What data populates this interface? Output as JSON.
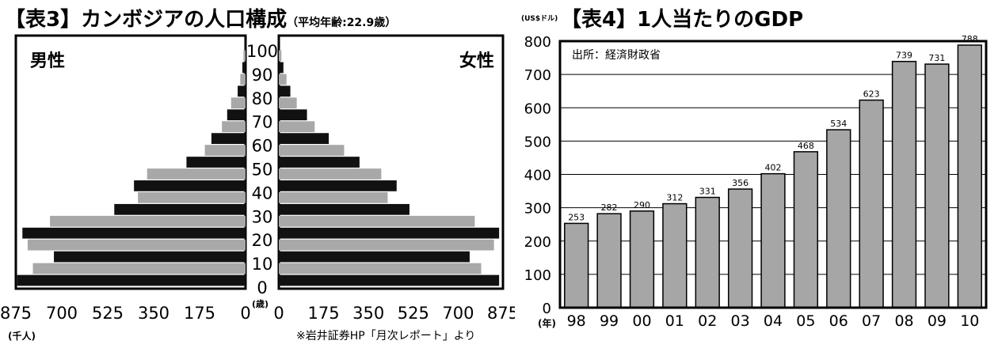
{
  "chart3": {
    "title": "【表3】カンボジアの人口構成",
    "subtitle": "（平均年齢:22.9歳）",
    "male_label": "男性",
    "female_label": "女性",
    "x_unit": "(千人)",
    "age_unit": "(歳)",
    "source": "※岩井証券HP「月次レポート」より"
  },
  "chart4": {
    "title": "【表4】1人当たりのGDP",
    "y_unit": "(US$ドル)",
    "x_unit": "(年)",
    "source_note": "出所：経済財政省"
  },
  "chart_data": [
    {
      "type": "bar",
      "orientation": "horizontal-pyramid",
      "title": "【表3】カンボジアの人口構成",
      "subtitle": "（平均年齢:22.9歳）",
      "x_ticks": [
        "875",
        "700",
        "525",
        "350",
        "175",
        "0"
      ],
      "x_ticks_right": [
        "0",
        "175",
        "350",
        "525",
        "700",
        "875"
      ],
      "xlim": [
        0,
        875
      ],
      "age_ticks": [
        "0",
        "10",
        "20",
        "30",
        "40",
        "50",
        "60",
        "70",
        "80",
        "90",
        "100"
      ],
      "age_groups": [
        "0-4",
        "5-9",
        "10-14",
        "15-19",
        "20-24",
        "25-29",
        "30-34",
        "35-39",
        "40-44",
        "45-49",
        "50-54",
        "55-59",
        "60-64",
        "65-69",
        "70-74",
        "75-79",
        "80-84",
        "85-89",
        "90-94",
        "95-99"
      ],
      "series": [
        {
          "name": "男性",
          "values": [
            870,
            810,
            730,
            830,
            850,
            745,
            500,
            410,
            425,
            375,
            225,
            155,
            130,
            90,
            70,
            55,
            30,
            20,
            12,
            8
          ]
        },
        {
          "name": "女性",
          "values": [
            860,
            790,
            745,
            840,
            860,
            765,
            510,
            425,
            460,
            400,
            315,
            255,
            195,
            140,
            110,
            70,
            45,
            30,
            18,
            10
          ]
        }
      ],
      "grid": false
    },
    {
      "type": "bar",
      "title": "【表4】1人当たりのGDP",
      "categories": [
        "98",
        "99",
        "00",
        "01",
        "02",
        "03",
        "04",
        "05",
        "06",
        "07",
        "08",
        "09",
        "10"
      ],
      "values": [
        253,
        282,
        290,
        312,
        331,
        356,
        402,
        468,
        534,
        623,
        739,
        731,
        788
      ],
      "ylim": [
        0,
        800
      ],
      "y_ticks": [
        "0",
        "100",
        "200",
        "300",
        "400",
        "500",
        "600",
        "700",
        "800"
      ],
      "grid": true
    }
  ],
  "colors": {
    "male_dark": "#111111",
    "light_bar": "#a8a8a8",
    "gdp_bar": "#a6a6a6",
    "frame": "#000000"
  }
}
